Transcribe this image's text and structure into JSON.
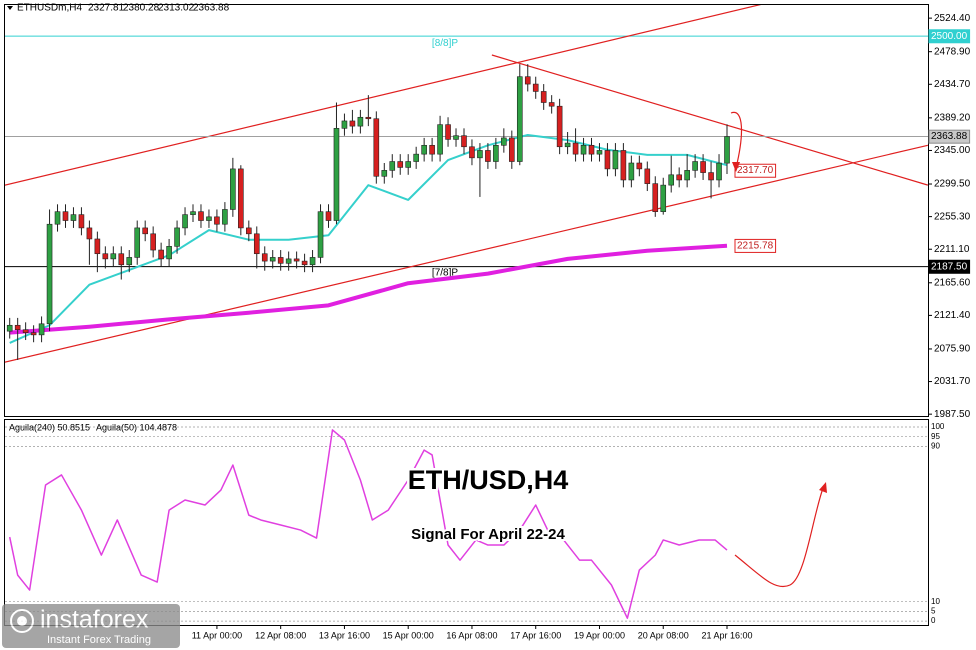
{
  "chart_data": [
    {
      "type": "candlestick",
      "symbol": "ETHUSDm,H4",
      "categories": [
        null,
        null,
        null,
        null,
        null,
        null,
        null,
        null,
        null,
        null,
        null,
        null,
        null,
        null,
        null,
        null,
        null,
        null,
        null,
        null,
        null,
        null,
        null,
        null,
        null,
        null,
        "11 Apr 00:00",
        null,
        null,
        null,
        null,
        null,
        null,
        null,
        "12 Apr 08:00",
        null,
        null,
        null,
        null,
        null,
        null,
        null,
        "13 Apr 16:00",
        null,
        null,
        null,
        null,
        null,
        null,
        null,
        "15 Apr 00:00",
        null,
        null,
        null,
        null,
        null,
        null,
        null,
        "16 Apr 08:00",
        null,
        null,
        null,
        null,
        null,
        null,
        null,
        "17 Apr 16:00",
        null,
        null,
        null,
        null,
        null,
        null,
        null,
        "19 Apr 00:00",
        null,
        null,
        null,
        null,
        null,
        null,
        null,
        "20 Apr 08:00",
        null,
        null,
        null,
        null,
        null,
        null,
        null,
        "21 Apr 16:00"
      ],
      "open": [
        2100,
        2108,
        2102,
        2098,
        2095,
        2110,
        2245,
        2262,
        2250,
        2258,
        2240,
        2225,
        2205,
        2198,
        2205,
        2190,
        2200,
        2240,
        2232,
        2210,
        2198,
        2215,
        2240,
        2258,
        2262,
        2250,
        2255,
        2245,
        2265,
        2320,
        2240,
        2232,
        2205,
        2195,
        2200,
        2192,
        2198,
        2195,
        2190,
        2200,
        2262,
        2250,
        2375,
        2385,
        2378,
        2390,
        2388,
        2310,
        2318,
        2330,
        2322,
        2330,
        2340,
        2352,
        2340,
        2380,
        2360,
        2365,
        2350,
        2335,
        2345,
        2330,
        2352,
        2362,
        2330,
        2445,
        2435,
        2425,
        2410,
        2405,
        2350,
        2355,
        2340,
        2352,
        2340,
        2345,
        2320,
        2345,
        2305,
        2328,
        2320,
        2300,
        2262,
        2298,
        2312,
        2305,
        2318,
        2330,
        2315,
        2305,
        2327.81
      ],
      "high": [
        2118,
        2118,
        2112,
        2108,
        2120,
        2265,
        2272,
        2272,
        2268,
        2268,
        2250,
        2235,
        2215,
        2215,
        2215,
        2210,
        2250,
        2250,
        2242,
        2220,
        2225,
        2250,
        2268,
        2272,
        2272,
        2265,
        2265,
        2275,
        2335,
        2325,
        2250,
        2242,
        2215,
        2210,
        2210,
        2208,
        2208,
        2205,
        2210,
        2272,
        2272,
        2410,
        2395,
        2400,
        2400,
        2420,
        2398,
        2328,
        2340,
        2340,
        2340,
        2350,
        2362,
        2362,
        2392,
        2390,
        2375,
        2375,
        2360,
        2355,
        2355,
        2362,
        2375,
        2372,
        2462,
        2462,
        2445,
        2435,
        2420,
        2415,
        2370,
        2375,
        2362,
        2362,
        2355,
        2355,
        2355,
        2355,
        2338,
        2338,
        2330,
        2310,
        2308,
        2338,
        2322,
        2340,
        2340,
        2340,
        2330,
        2340,
        2380.28
      ],
      "low": [
        2090,
        2061,
        2088,
        2085,
        2085,
        2100,
        2235,
        2240,
        2240,
        2230,
        2190,
        2180,
        2185,
        2188,
        2170,
        2180,
        2190,
        2222,
        2200,
        2188,
        2188,
        2205,
        2230,
        2248,
        2240,
        2240,
        2235,
        2235,
        2255,
        2230,
        2222,
        2185,
        2182,
        2185,
        2182,
        2182,
        2185,
        2180,
        2180,
        2192,
        2240,
        2245,
        2365,
        2368,
        2368,
        2378,
        2300,
        2300,
        2308,
        2312,
        2312,
        2320,
        2330,
        2330,
        2330,
        2350,
        2350,
        2340,
        2325,
        2282,
        2320,
        2320,
        2342,
        2320,
        2325,
        2425,
        2415,
        2400,
        2395,
        2340,
        2340,
        2330,
        2330,
        2330,
        2330,
        2310,
        2310,
        2295,
        2295,
        2310,
        2290,
        2255,
        2258,
        2288,
        2295,
        2295,
        2308,
        2305,
        2280,
        2295,
        2313.02
      ],
      "close": [
        2108,
        2102,
        2098,
        2095,
        2110,
        2245,
        2262,
        2250,
        2258,
        2240,
        2225,
        2205,
        2198,
        2205,
        2190,
        2200,
        2240,
        2232,
        2210,
        2198,
        2215,
        2240,
        2258,
        2262,
        2250,
        2255,
        2245,
        2265,
        2320,
        2240,
        2232,
        2205,
        2195,
        2200,
        2192,
        2198,
        2195,
        2190,
        2200,
        2262,
        2250,
        2375,
        2385,
        2378,
        2390,
        2388,
        2310,
        2318,
        2330,
        2322,
        2330,
        2340,
        2352,
        2340,
        2380,
        2360,
        2365,
        2350,
        2335,
        2345,
        2330,
        2352,
        2362,
        2330,
        2445,
        2435,
        2425,
        2410,
        2405,
        2350,
        2355,
        2340,
        2352,
        2340,
        2345,
        2320,
        2345,
        2305,
        2328,
        2320,
        2300,
        2262,
        2298,
        2312,
        2305,
        2318,
        2330,
        2315,
        2305,
        2327.81,
        2363.88
      ],
      "up_color": "#2ea043",
      "down_color": "#d62020",
      "ylim": [
        1985,
        2542.2
      ],
      "yticks": [
        {
          "value": 2524.4,
          "label": "2524.40"
        },
        {
          "value": 2478.9,
          "label": "2478.90"
        },
        {
          "value": 2434.7,
          "label": "2434.70"
        },
        {
          "value": 2389.2,
          "label": "2389.20"
        },
        {
          "value": 2345,
          "label": "2345.00"
        },
        {
          "value": 2299.5,
          "label": "2299.50"
        },
        {
          "value": 2255.3,
          "label": "2255.30"
        },
        {
          "value": 2211.1,
          "label": "2211.10"
        },
        {
          "value": 2165.6,
          "label": "2165.60"
        },
        {
          "value": 2121.4,
          "label": "2121.40"
        },
        {
          "value": 2075.9,
          "label": "2075.90"
        },
        {
          "value": 2031.7,
          "label": "2031.70"
        },
        {
          "value": 1987.5,
          "label": "1987.50"
        }
      ],
      "series": [
        {
          "color": "#35d0cc",
          "width": 2,
          "x": [
            0,
            5,
            10,
            15,
            20,
            25,
            30,
            35,
            40,
            45,
            50,
            55,
            60,
            65,
            70,
            75,
            80,
            85,
            90
          ],
          "values": [
            2084,
            2108,
            2163,
            2183,
            2203,
            2237,
            2224,
            2224,
            2230,
            2298,
            2278,
            2332,
            2352,
            2366,
            2359,
            2346,
            2339,
            2339,
            2325
          ]
        },
        {
          "color": "#e020e0",
          "width": 4,
          "x": [
            0,
            10,
            20,
            30,
            40,
            50,
            60,
            70,
            80,
            90
          ],
          "values": [
            2098,
            2106,
            2116,
            2125,
            2135,
            2165,
            2178,
            2198,
            2209,
            2215.78
          ]
        }
      ],
      "levels": [
        {
          "value": 2500,
          "label": "2500.00",
          "name": "[8/8]P",
          "color": "#30d0d0"
        },
        {
          "value": 2187.5,
          "label": "2187.50",
          "name": "[7/8]P",
          "color": "#000000"
        }
      ],
      "trendlines": [
        {
          "x": [
            -0.6,
            96.6
          ],
          "y": [
            2298,
            2549
          ],
          "color": "#e02020"
        },
        {
          "x": [
            -0.6,
            115.2
          ],
          "y": [
            2058,
            2352
          ],
          "color": "#e02020"
        },
        {
          "x": [
            60.5,
            115.2
          ],
          "y": [
            2474.4,
            2298
          ],
          "color": "#e02020"
        }
      ],
      "price_labels": [
        {
          "value": 2317.7,
          "label": "2317.70"
        }
      ]
    },
    {
      "type": "line",
      "legend": [
        "Aguila(240) 50.8515",
        "Aguila(50) 104.4878"
      ],
      "ylim": [
        -2,
        103.6
      ],
      "yticks": [
        100,
        95,
        90,
        10,
        5,
        0
      ],
      "series": [
        {
          "color": "#e040e0",
          "x": [
            0,
            1,
            2.5,
            4.5,
            6.5,
            9,
            11.5,
            13.5,
            16.5,
            18.5,
            20,
            22,
            24.5,
            26.5,
            28,
            30,
            31.5,
            34,
            36.5,
            38.5,
            40.5,
            42,
            44,
            45.5,
            47.5,
            50,
            52,
            53,
            55,
            56.5,
            58.5,
            60,
            62,
            64,
            66,
            67.5,
            69.5,
            71.5,
            73,
            75.5,
            77.5,
            79,
            81,
            82,
            84,
            86.5,
            88.5,
            90
          ],
          "values": [
            43.3,
            23.7,
            16,
            70.1,
            75.3,
            57.2,
            34,
            52.1,
            23.7,
            20.1,
            57.2,
            62.4,
            59.8,
            67.5,
            80.4,
            54.6,
            52.1,
            49.5,
            46.9,
            42.8,
            98.5,
            93.3,
            72.7,
            52.1,
            57.2,
            72.7,
            88.1,
            85.6,
            39.2,
            31.4,
            41.8,
            39.2,
            39.2,
            46.9,
            59.8,
            46.9,
            41.8,
            31.4,
            31.4,
            18.6,
            1.5,
            26.3,
            34,
            41.8,
            39.2,
            41.8,
            41.8,
            36.6
          ]
        }
      ]
    }
  ],
  "overlay": {
    "title": "ETH/USD,H4",
    "subtitle": "Signal For April 22-24"
  },
  "watermark": {
    "brand": "instaforex",
    "tagline": "Instant Forex Trading"
  }
}
